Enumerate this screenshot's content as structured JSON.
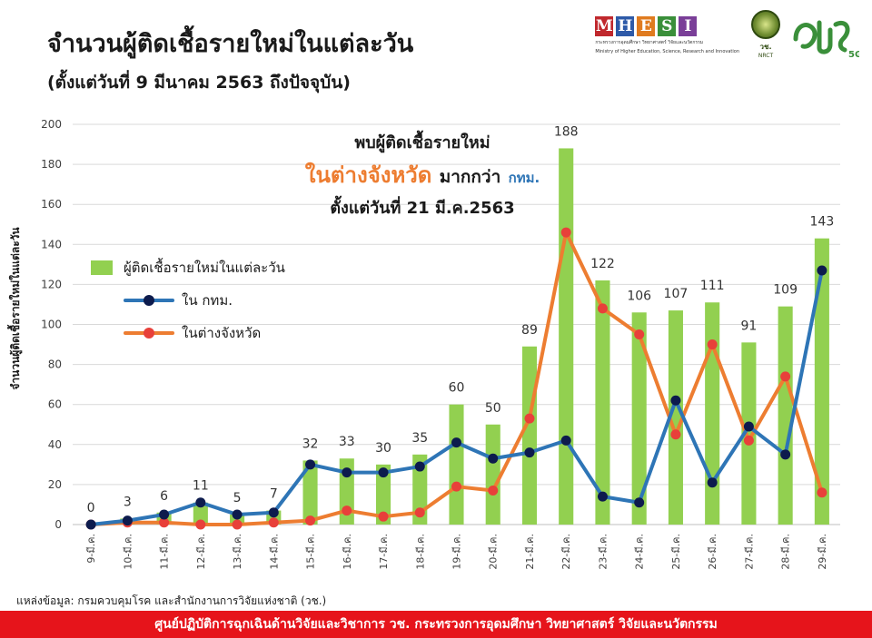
{
  "header": {
    "title": "จำนวนผู้ติดเชื้อรายใหม่ในแต่ละวัน",
    "subtitle": "(ตั้งแต่วันที่ 9 มีนาคม 2563 ถึงปัจจุบัน)"
  },
  "logos": {
    "mhesi_letters": [
      "M",
      "H",
      "E",
      "S",
      "I"
    ],
    "mhesi_colors": [
      "#c0282d",
      "#2e5aa8",
      "#e07b1f",
      "#3a8f3a",
      "#7a3f98"
    ],
    "mhesi_line1": "กระทรวงการอุดมศึกษา วิทยาศาสตร์ วิจัยและนวัตกรรม",
    "mhesi_line2": "Ministry of Higher Education, Science, Research and Innovation",
    "nrct_text": "วช.",
    "nrct_sub": "NRCT",
    "logo_5g_text": "5G"
  },
  "annotation": {
    "line1": "พบผู้ติดเชื้อรายใหม่",
    "line2_highlight": "ในต่างจังหวัด",
    "line2_rest": "มากกว่า",
    "line2_bkk": "กทม.",
    "line3": "ตั้งแต่วันที่ 21 มี.ค.2563"
  },
  "legend": {
    "bar": "ผู้ติดเชื้อรายใหม่ในแต่ละวัน",
    "bkk": "ใน กทม.",
    "province": "ในต่างจังหวัด"
  },
  "footer": {
    "source": "แหล่งข้อมูล: กรมควบคุมโรค และสำนักงานการวิจัยแห่งชาติ (วช.)",
    "banner": "ศูนย์ปฏิบัติการฉุกเฉินด้านวิจัยและวิชาการ   วช.   กระทรวงการอุดมศึกษา วิทยาศาสตร์ วิจัยและนวัตกรรม"
  },
  "colors": {
    "bar": "#92d050",
    "bkk": "#2e75b6",
    "bkk_marker": "#0d1b4d",
    "province": "#ed7d31",
    "province_marker": "#e8403a",
    "grid": "#d9d9d9",
    "banner": "#e6141b"
  },
  "chart_data": {
    "type": "bar",
    "title": "จำนวนผู้ติดเชื้อรายใหม่ในแต่ละวัน",
    "subtitle": "(ตั้งแต่วันที่ 9 มีนาคม 2563 ถึงปัจจุบัน)",
    "ylabel": "จำนวนผู้ติดเชื้อรายใหม่ในแต่ละวัน",
    "xlabel": "",
    "ylim": [
      0,
      200
    ],
    "yticks": [
      0,
      20,
      40,
      60,
      80,
      100,
      120,
      140,
      160,
      180,
      200
    ],
    "grid": true,
    "legend_position": "left",
    "categories": [
      "9-มี.ค.",
      "10-มี.ค.",
      "11-มี.ค.",
      "12-มี.ค.",
      "13-มี.ค.",
      "14-มี.ค.",
      "15-มี.ค.",
      "16-มี.ค.",
      "17-มี.ค.",
      "18-มี.ค.",
      "19-มี.ค.",
      "20-มี.ค.",
      "21-มี.ค.",
      "22-มี.ค.",
      "23-มี.ค.",
      "24-มี.ค.",
      "25-มี.ค.",
      "26-มี.ค.",
      "27-มี.ค.",
      "28-มี.ค.",
      "29-มี.ค."
    ],
    "series": [
      {
        "name": "ผู้ติดเชื้อรายใหม่ในแต่ละวัน",
        "type": "bar",
        "values": [
          0,
          3,
          6,
          11,
          5,
          7,
          32,
          33,
          30,
          35,
          60,
          50,
          89,
          188,
          122,
          106,
          107,
          111,
          91,
          109,
          143
        ]
      },
      {
        "name": "ใน กทม.",
        "type": "line",
        "values": [
          0,
          2,
          5,
          11,
          5,
          6,
          30,
          26,
          26,
          29,
          41,
          33,
          36,
          42,
          14,
          11,
          62,
          21,
          49,
          35,
          127
        ]
      },
      {
        "name": "ในต่างจังหวัด",
        "type": "line",
        "values": [
          0,
          1,
          1,
          0,
          0,
          1,
          2,
          7,
          4,
          6,
          19,
          17,
          53,
          146,
          108,
          95,
          45,
          90,
          42,
          74,
          16
        ]
      }
    ]
  }
}
